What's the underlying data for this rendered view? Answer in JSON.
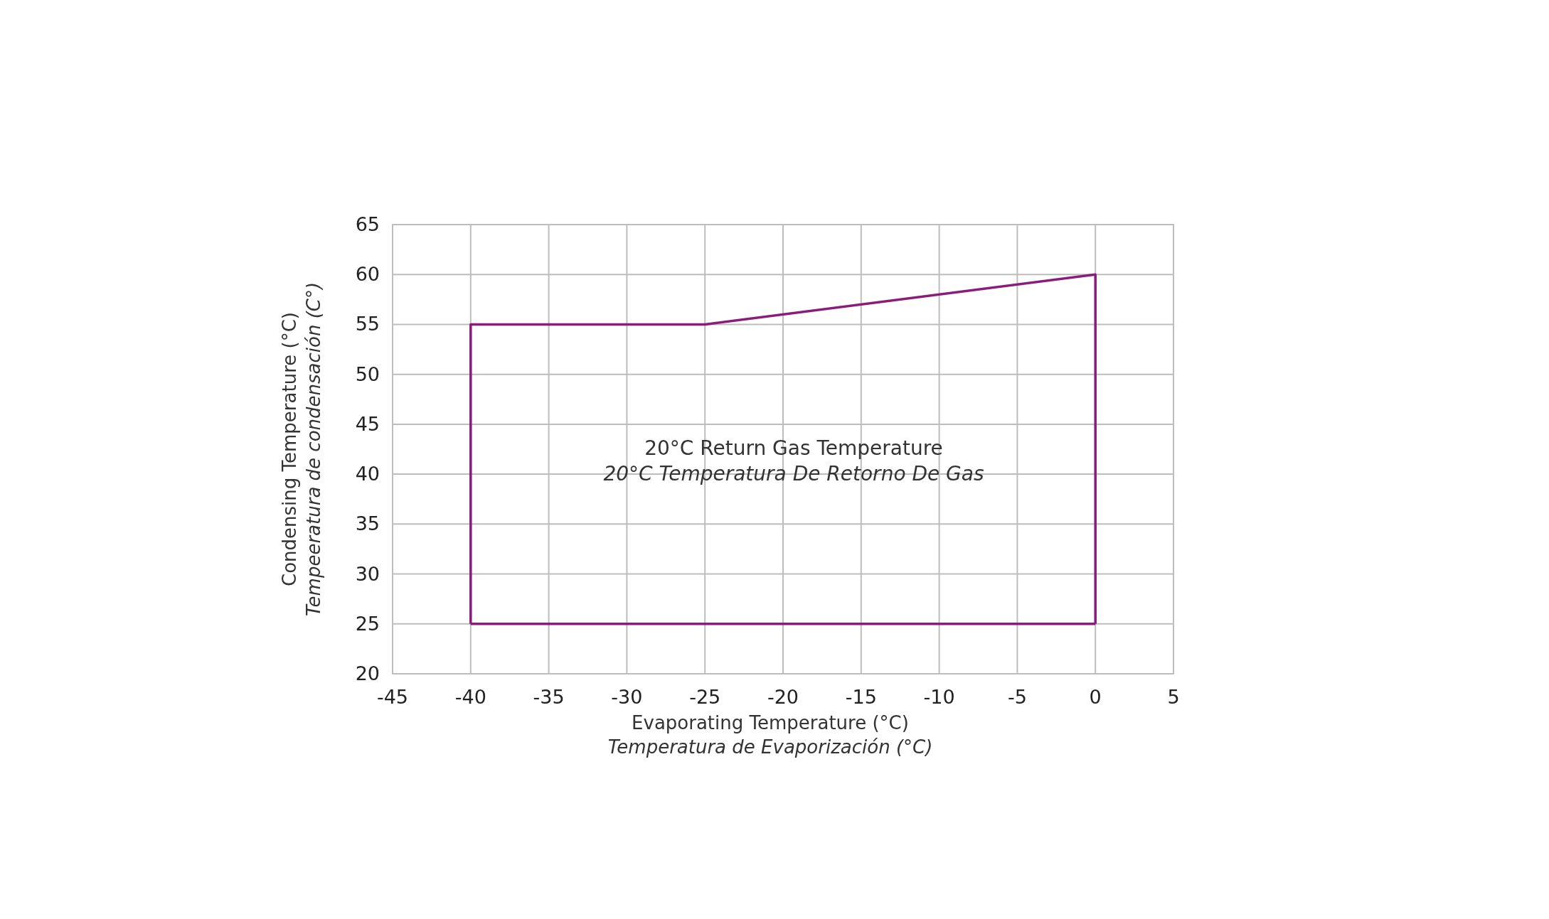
{
  "chart_data": {
    "type": "line",
    "xlabel": "Evaporating Temperature (°C)\nTemperatura de Evaporización (°C)",
    "ylabel": "Condensing Temperature (°C)\nTempeeratura de condensación (C°)",
    "annotations": [
      "20°C Return Gas Temperature\n20°C Temperatura De Retorno De Gas"
    ],
    "series": [
      {
        "color": "#8b1c7c",
        "x": [
          -40,
          -40,
          -25,
          0,
          0
        ],
        "values": [
          25,
          55,
          55,
          60,
          25
        ]
      },
      {
        "color": "#8b1c7c",
        "x": [
          -40,
          0
        ],
        "values": [
          25,
          25
        ]
      }
    ],
    "xlim": [
      -45,
      5
    ],
    "xticks": [
      -45,
      -40,
      -35,
      -30,
      -25,
      -20,
      -15,
      -10,
      -5,
      0,
      5
    ],
    "ylim": [
      20,
      65
    ],
    "yticks": [
      20,
      25,
      30,
      35,
      40,
      45,
      50,
      55,
      60,
      65
    ],
    "grid": true,
    "marker": "none",
    "line_style": "solid"
  }
}
